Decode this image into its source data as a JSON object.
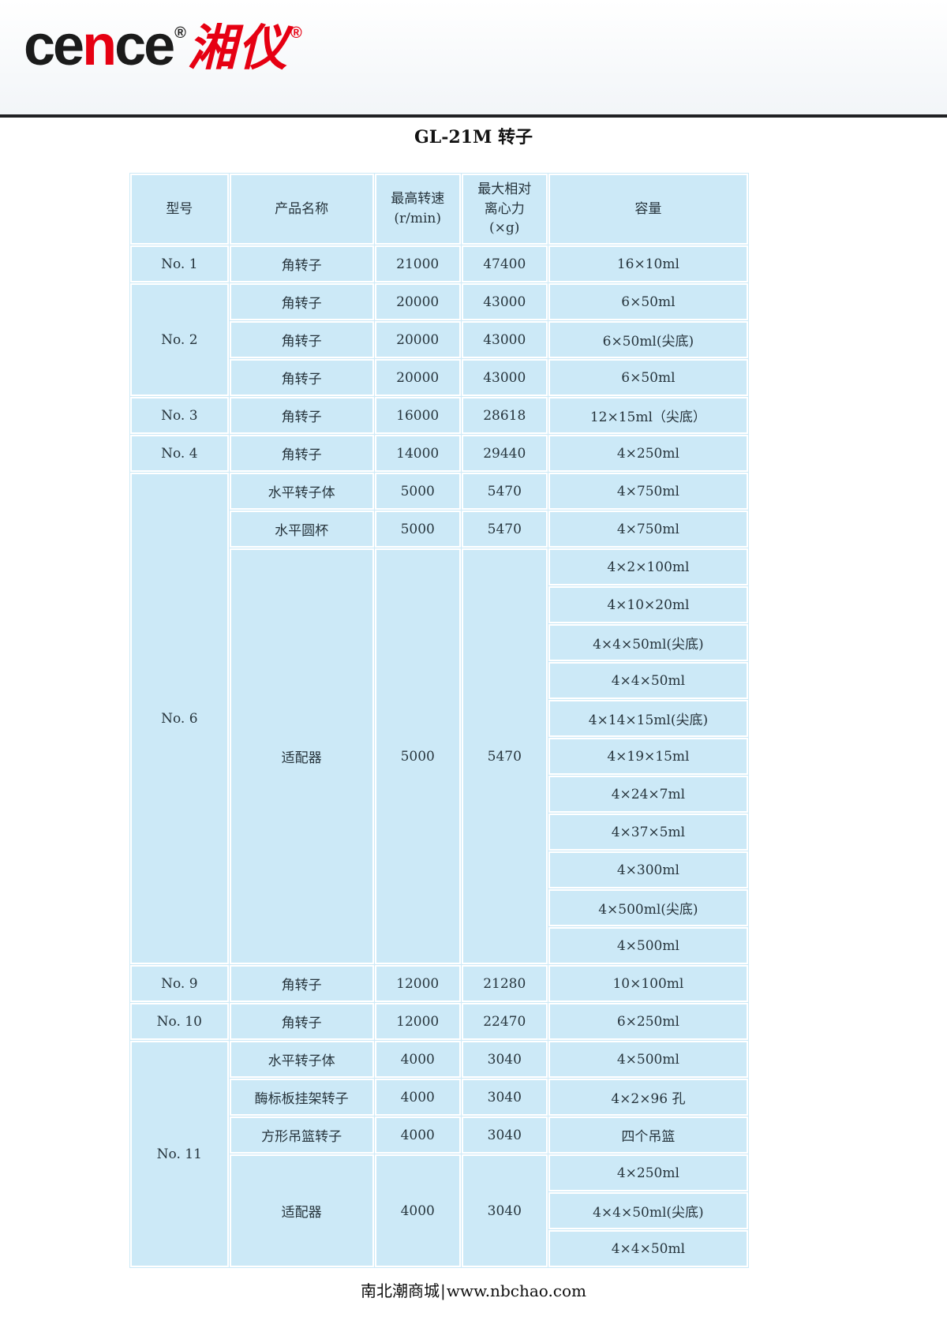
{
  "brand": {
    "cence_left": "ce",
    "cence_mid": "n",
    "cence_right": "ce",
    "reg": "®",
    "cn": "湘仪",
    "accent_color": "#e60012"
  },
  "page": {
    "title": "GL-21M 转子",
    "footer_site": "南北潮商城",
    "footer_sep": "|",
    "footer_url": "www.nbchao.com"
  },
  "colors": {
    "cell_bg": "#cce9f7",
    "grid_line": "#ffffff",
    "ink": "#26343c",
    "rule": "#202124"
  },
  "table": {
    "headers": [
      "型号",
      "产品名称",
      "最高转速\n(r/min)",
      "最大相对\n离心力\n(×g)",
      "容量"
    ],
    "column_names": [
      "model-cell",
      "product-name-cell",
      "max-speed-cell",
      "max-rcf-cell",
      "capacity-cell"
    ],
    "rows": [
      {
        "cells": [
          {
            "t": "No. 1"
          },
          {
            "t": "角转子"
          },
          {
            "t": "21000"
          },
          {
            "t": "47400"
          },
          {
            "t": "16×10ml"
          }
        ]
      },
      {
        "cells": [
          {
            "t": "No. 2",
            "rs": 3
          },
          {
            "t": "角转子"
          },
          {
            "t": "20000"
          },
          {
            "t": "43000"
          },
          {
            "t": "6×50ml"
          }
        ]
      },
      {
        "cells": [
          {
            "t": "角转子"
          },
          {
            "t": "20000"
          },
          {
            "t": "43000"
          },
          {
            "t": "6×50ml(尖底)"
          }
        ]
      },
      {
        "cells": [
          {
            "t": "角转子"
          },
          {
            "t": "20000"
          },
          {
            "t": "43000"
          },
          {
            "t": "6×50ml"
          }
        ]
      },
      {
        "cells": [
          {
            "t": "No. 3"
          },
          {
            "t": "角转子"
          },
          {
            "t": "16000"
          },
          {
            "t": "28618"
          },
          {
            "t": "12×15ml（尖底）"
          }
        ]
      },
      {
        "cells": [
          {
            "t": "No. 4"
          },
          {
            "t": "角转子"
          },
          {
            "t": "14000"
          },
          {
            "t": "29440"
          },
          {
            "t": "4×250ml"
          }
        ]
      },
      {
        "cells": [
          {
            "t": "No. 6",
            "rs": 13
          },
          {
            "t": "水平转子体"
          },
          {
            "t": "5000"
          },
          {
            "t": "5470"
          },
          {
            "t": "4×750ml"
          }
        ]
      },
      {
        "cells": [
          {
            "t": "水平圆杯"
          },
          {
            "t": "5000"
          },
          {
            "t": "5470"
          },
          {
            "t": "4×750ml"
          }
        ]
      },
      {
        "cells": [
          {
            "t": "适配器",
            "rs": 11
          },
          {
            "t": "5000",
            "rs": 11
          },
          {
            "t": "5470",
            "rs": 11
          },
          {
            "t": "4×2×100ml"
          }
        ]
      },
      {
        "cells": [
          {
            "t": "4×10×20ml"
          }
        ]
      },
      {
        "cells": [
          {
            "t": "4×4×50ml(尖底)"
          }
        ]
      },
      {
        "cells": [
          {
            "t": "4×4×50ml"
          }
        ]
      },
      {
        "cells": [
          {
            "t": "4×14×15ml(尖底)"
          }
        ]
      },
      {
        "cells": [
          {
            "t": "4×19×15ml"
          }
        ]
      },
      {
        "cells": [
          {
            "t": "4×24×7ml"
          }
        ]
      },
      {
        "cells": [
          {
            "t": "4×37×5ml"
          }
        ]
      },
      {
        "cells": [
          {
            "t": "4×300ml"
          }
        ]
      },
      {
        "cells": [
          {
            "t": "4×500ml(尖底)"
          }
        ]
      },
      {
        "cells": [
          {
            "t": "4×500ml"
          }
        ]
      },
      {
        "cells": [
          {
            "t": "No. 9"
          },
          {
            "t": "角转子"
          },
          {
            "t": "12000"
          },
          {
            "t": "21280"
          },
          {
            "t": "10×100ml"
          }
        ]
      },
      {
        "cells": [
          {
            "t": "No. 10"
          },
          {
            "t": "角转子"
          },
          {
            "t": "12000"
          },
          {
            "t": "22470"
          },
          {
            "t": "6×250ml"
          }
        ]
      },
      {
        "cells": [
          {
            "t": "No. 11",
            "rs": 6
          },
          {
            "t": "水平转子体"
          },
          {
            "t": "4000"
          },
          {
            "t": "3040"
          },
          {
            "t": "4×500ml"
          }
        ]
      },
      {
        "cells": [
          {
            "t": "酶标板挂架转子"
          },
          {
            "t": "4000"
          },
          {
            "t": "3040"
          },
          {
            "t": "4×2×96 孔"
          }
        ]
      },
      {
        "cells": [
          {
            "t": "方形吊篮转子"
          },
          {
            "t": "4000"
          },
          {
            "t": "3040"
          },
          {
            "t": "四个吊篮"
          }
        ]
      },
      {
        "cells": [
          {
            "t": "适配器",
            "rs": 3
          },
          {
            "t": "4000",
            "rs": 3
          },
          {
            "t": "3040",
            "rs": 3
          },
          {
            "t": "4×250ml"
          }
        ]
      },
      {
        "cells": [
          {
            "t": "4×4×50ml(尖底)"
          }
        ]
      },
      {
        "cells": [
          {
            "t": "4×4×50ml"
          }
        ]
      }
    ]
  }
}
